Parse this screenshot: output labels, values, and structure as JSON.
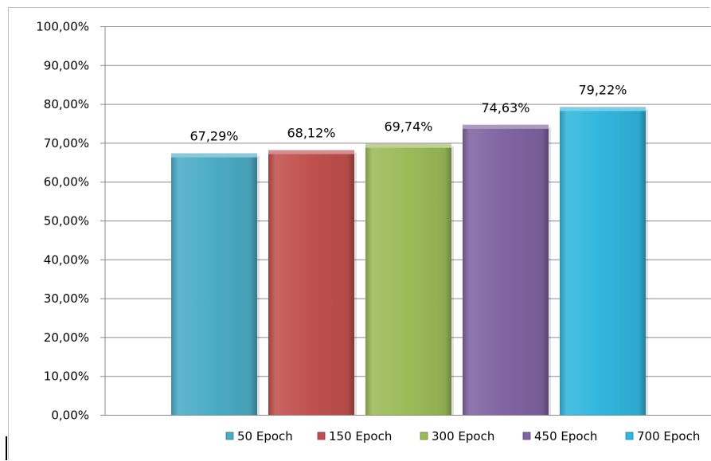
{
  "chart_data": {
    "type": "bar",
    "title": "",
    "xlabel": "",
    "ylabel": "",
    "ylim": [
      0,
      100
    ],
    "y_ticks": [
      0,
      10,
      20,
      30,
      40,
      50,
      60,
      70,
      80,
      90,
      100
    ],
    "y_tick_labels": [
      "0,00%",
      "10,00%",
      "20,00%",
      "30,00%",
      "40,00%",
      "50,00%",
      "60,00%",
      "70,00%",
      "80,00%",
      "90,00%",
      "100,00%"
    ],
    "grid": true,
    "legend_position": "bottom-right",
    "series": [
      {
        "name": "50 Epoch",
        "value": 67.29,
        "label": "67,29%",
        "color": "#4bacc6"
      },
      {
        "name": "150 Epoch",
        "value": 68.12,
        "label": "68,12%",
        "color": "#c0504d"
      },
      {
        "name": "300 Epoch",
        "value": 69.74,
        "label": "69,74%",
        "color": "#9bbb59"
      },
      {
        "name": "450 Epoch",
        "value": 74.63,
        "label": "74,63%",
        "color": "#8064a2"
      },
      {
        "name": "700 Epoch",
        "value": 79.22,
        "label": "79,22%",
        "color": "#31b6dd"
      }
    ]
  }
}
